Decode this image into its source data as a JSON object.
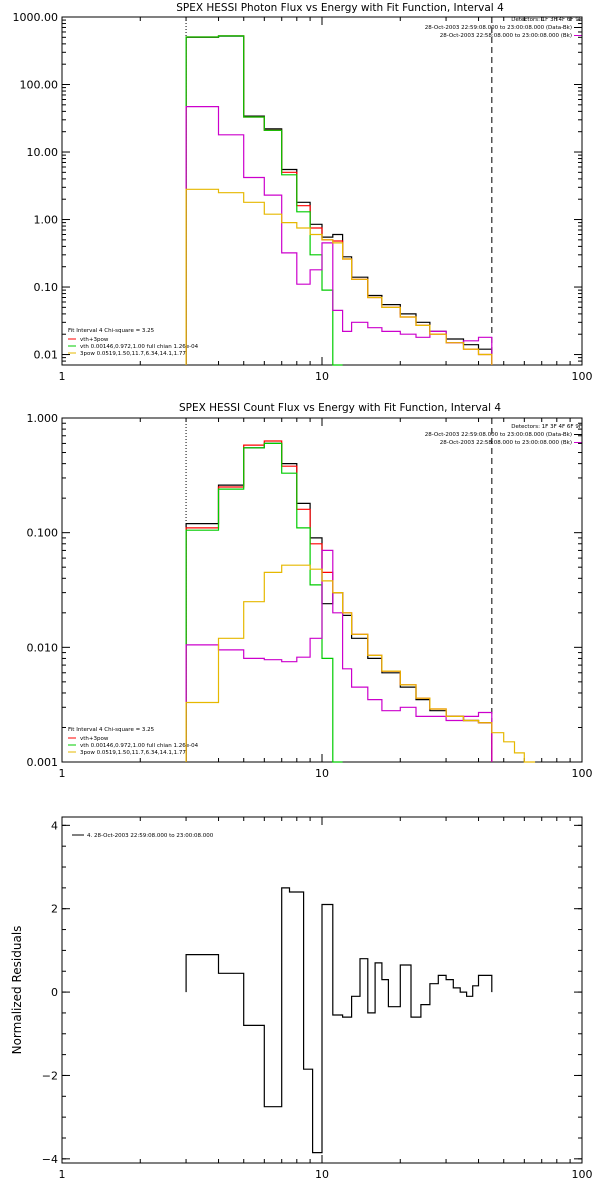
{
  "chart_data": [
    {
      "type": "line",
      "step": true,
      "scale": {
        "x": "log",
        "y": "log"
      },
      "title": "SPEX HESSI Photon Flux vs Energy with Fit Function, Interval 4",
      "xlim": [
        1,
        100
      ],
      "ylim": [
        0.007,
        1000
      ],
      "xticks": [
        {
          "v": 1,
          "label": "1"
        },
        {
          "v": 10,
          "label": "10"
        },
        {
          "v": 100,
          "label": "100"
        }
      ],
      "yticks": [
        {
          "v": 0.01,
          "label": "0.01"
        },
        {
          "v": 0.1,
          "label": "0.10"
        },
        {
          "v": 1,
          "label": "1.00"
        },
        {
          "v": 10,
          "label": "10.00"
        },
        {
          "v": 100,
          "label": "100.00"
        },
        {
          "v": 1000,
          "label": "1000.00"
        }
      ],
      "vlines": [
        {
          "x": 3.0,
          "style": "dotted",
          "color": "#000000"
        },
        {
          "x": 45.0,
          "style": "dashed",
          "color": "#000000"
        }
      ],
      "info_lines": [
        {
          "text": "Detectors: 1F 3F 4F 6F 9F",
          "color": "#000000"
        },
        {
          "text": "28-Oct-2003 22:59:08.000 to 23:00:08.000 (Data-Bk)",
          "color": "#000000"
        },
        {
          "text": "28-Oct-2003 22:58:08.000 to 23:00:08.000 (Bk)",
          "color": "#cc00cc"
        }
      ],
      "legend_lines": [
        {
          "text": "Fit Interval  4    Chi-square = 3.25",
          "color": "#000000"
        },
        {
          "text": "vth+3pow",
          "color": "#ff0000"
        },
        {
          "text": "vth 0.00146,0.972,1.00   full chian 1.26e-04",
          "color": "#00cc00"
        },
        {
          "text": "3pow 0.0519,1.50,11.7,6.34,14.1,1.77",
          "color": "#e6b800"
        }
      ],
      "edges": [
        3.0,
        4.0,
        5.0,
        6.0,
        7.0,
        8.0,
        9.0,
        10.0,
        11.0,
        12.0,
        13.0,
        15.0,
        17.0,
        20.0,
        23.0,
        26.0,
        30.0,
        35.0,
        40.0,
        45.0
      ],
      "series": [
        {
          "color": "#000000",
          "values": [
            500,
            520,
            34,
            22,
            5.5,
            1.8,
            0.85,
            0.55,
            0.6,
            0.28,
            0.14,
            0.075,
            0.055,
            0.04,
            0.03,
            0.022,
            0.017,
            0.014,
            0.012
          ]
        },
        {
          "color": "#ff0000",
          "values": [
            505,
            525,
            33,
            21,
            5.0,
            1.6,
            0.75,
            0.5,
            0.48,
            0.26,
            0.13,
            0.07,
            0.05,
            0.036,
            0.027,
            0.02,
            0.015,
            0.012,
            0.01
          ]
        },
        {
          "color": "#00cc00",
          "values": [
            505,
            525,
            33,
            21,
            4.6,
            1.3,
            0.3,
            0.09,
            0.005
          ]
        },
        {
          "color": "#cc00cc",
          "values": [
            47,
            18,
            4.2,
            2.3,
            0.32,
            0.11,
            0.18,
            0.45,
            0.045,
            0.022,
            0.03,
            0.025,
            0.022,
            0.02,
            0.018,
            0.022,
            0.015,
            0.016,
            0.018
          ]
        },
        {
          "color": "#e6b800",
          "values": [
            2.8,
            2.5,
            1.8,
            1.2,
            0.9,
            0.75,
            0.6,
            0.5,
            0.45,
            0.26,
            0.13,
            0.07,
            0.05,
            0.036,
            0.027,
            0.02,
            0.015,
            0.012,
            0.01
          ]
        }
      ]
    },
    {
      "type": "line",
      "step": true,
      "scale": {
        "x": "log",
        "y": "log"
      },
      "title": "SPEX HESSI Count Flux vs Energy with Fit Function, Interval 4",
      "xlim": [
        1,
        100
      ],
      "ylim": [
        0.001,
        1
      ],
      "xticks": [
        {
          "v": 1,
          "label": "1"
        },
        {
          "v": 10,
          "label": "10"
        },
        {
          "v": 100,
          "label": "100"
        }
      ],
      "yticks": [
        {
          "v": 0.001,
          "label": "0.001"
        },
        {
          "v": 0.01,
          "label": "0.010"
        },
        {
          "v": 0.1,
          "label": "0.100"
        },
        {
          "v": 1,
          "label": "1.000"
        }
      ],
      "vlines": [
        {
          "x": 3.0,
          "style": "dotted",
          "color": "#000000"
        },
        {
          "x": 45.0,
          "style": "dashed",
          "color": "#000000"
        }
      ],
      "info_lines": [
        {
          "text": "Detectors: 1F 3F 4F 6F 9F",
          "color": "#000000"
        },
        {
          "text": "28-Oct-2003 22:59:08.000 to 23:00:08.000 (Data-Bk)",
          "color": "#000000"
        },
        {
          "text": "28-Oct-2003 22:58:08.000 to 23:00:08.000 (Bk)",
          "color": "#cc00cc"
        }
      ],
      "legend_lines": [
        {
          "text": "Fit Interval  4    Chi-square = 3.25",
          "color": "#000000"
        },
        {
          "text": "vth+3pow",
          "color": "#ff0000"
        },
        {
          "text": "vth 0.00146,0.972,1.00   full chian 1.26e-04",
          "color": "#00cc00"
        },
        {
          "text": "3pow 0.0519,1.50,11.7,6.34,14.1,1.77",
          "color": "#e6b800"
        }
      ],
      "edges": [
        3.0,
        4.0,
        5.0,
        6.0,
        7.0,
        8.0,
        9.0,
        10.0,
        11.0,
        12.0,
        13.0,
        15.0,
        17.0,
        20.0,
        23.0,
        26.0,
        30.0,
        35.0,
        40.0,
        45.0
      ],
      "series": [
        {
          "color": "#000000",
          "values": [
            0.12,
            0.26,
            0.55,
            0.6,
            0.4,
            0.18,
            0.09,
            0.024,
            0.03,
            0.019,
            0.012,
            0.008,
            0.006,
            0.0045,
            0.0035,
            0.0028,
            0.0025,
            0.0023,
            0.0022
          ]
        },
        {
          "color": "#ff0000",
          "values": [
            0.11,
            0.25,
            0.58,
            0.63,
            0.38,
            0.16,
            0.08,
            0.045,
            0.03,
            0.02,
            0.013,
            0.0085,
            0.0062,
            0.0047,
            0.0036,
            0.0029,
            0.0025,
            0.0023,
            0.0022
          ]
        },
        {
          "color": "#00cc00",
          "values": [
            0.105,
            0.24,
            0.55,
            0.6,
            0.33,
            0.11,
            0.035,
            0.008,
            0.0005
          ]
        },
        {
          "color": "#cc00cc",
          "values": [
            0.0105,
            0.0095,
            0.008,
            0.0078,
            0.0075,
            0.0082,
            0.012,
            0.07,
            0.02,
            0.0065,
            0.0045,
            0.0035,
            0.0028,
            0.003,
            0.0025,
            0.0025,
            0.0023,
            0.0025,
            0.0027
          ]
        },
        {
          "color": "#e6b800",
          "values": [
            0.0033,
            0.012,
            0.025,
            0.045,
            0.052,
            0.052,
            0.048,
            0.038,
            0.03,
            0.02,
            0.013,
            0.0085,
            0.0062,
            0.0047,
            0.0036,
            0.0029,
            0.0025,
            0.0023,
            0.0022,
            0.0018,
            0.0015,
            0.0012,
            0.001
          ]
        }
      ],
      "edges_extended": [
        3.0,
        4.0,
        5.0,
        6.0,
        7.0,
        8.0,
        9.0,
        10.0,
        11.0,
        12.0,
        13.0,
        15.0,
        17.0,
        20.0,
        23.0,
        26.0,
        30.0,
        35.0,
        40.0,
        45.0,
        50.0,
        55.0,
        60.0,
        66.0
      ]
    },
    {
      "type": "line",
      "step": true,
      "scale": {
        "x": "log",
        "y": "linear"
      },
      "title": "",
      "ylabel": "Normalized Residuals",
      "xlim": [
        1,
        100
      ],
      "ylim": [
        -4.1,
        4.2
      ],
      "xticks": [
        {
          "v": 1,
          "label": "1"
        },
        {
          "v": 10,
          "label": "10"
        },
        {
          "v": 100,
          "label": "100"
        }
      ],
      "yticks": [
        {
          "v": -4,
          "label": "−4"
        },
        {
          "v": -2,
          "label": "−2"
        },
        {
          "v": 0,
          "label": "0"
        },
        {
          "v": 2,
          "label": "2"
        },
        {
          "v": 4,
          "label": "4"
        }
      ],
      "info_lines": [],
      "legend_lines": [
        {
          "text": "4. 28-Oct-2003 22:59:08.000 to 23:00:08.000",
          "color": "#000000"
        }
      ],
      "edges": [
        3.0,
        4.0,
        5.0,
        6.0,
        7.0,
        7.5,
        8.5,
        9.2,
        10.0,
        11.0,
        12.0,
        13.0,
        14.0,
        15.0,
        16.0,
        17.0,
        18.0,
        20.0,
        22.0,
        24.0,
        26.0,
        28.0,
        30.0,
        32.0,
        34.0,
        36.0,
        38.0,
        40.0,
        42.0,
        45.0
      ],
      "series": [
        {
          "color": "#000000",
          "values": [
            0.9,
            0.45,
            -0.8,
            -2.75,
            2.5,
            2.4,
            -1.85,
            -3.85,
            2.1,
            -0.55,
            -0.6,
            -0.1,
            0.8,
            -0.5,
            0.7,
            0.3,
            -0.35,
            0.65,
            -0.6,
            -0.3,
            0.2,
            0.4,
            0.3,
            0.1,
            0.0,
            -0.1,
            0.15,
            0.4,
            0.4
          ]
        }
      ]
    }
  ]
}
